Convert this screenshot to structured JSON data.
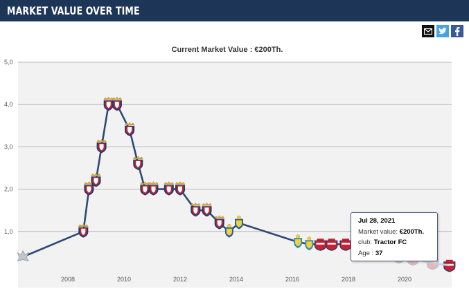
{
  "header": {
    "title": "MARKET VALUE OVER TIME"
  },
  "share": {
    "mail": "email-share",
    "twitter": "twitter-share",
    "facebook": "facebook-share"
  },
  "chart_data": {
    "type": "line",
    "title": "Current Market Value : €200Th.",
    "xlabel": "",
    "ylabel": "",
    "x_ticks": [
      "2008",
      "2010",
      "2012",
      "2014",
      "2016",
      "2018",
      "2020"
    ],
    "y_ticks": [
      "1,0",
      "2,0",
      "3,0",
      "4,0",
      "5,0"
    ],
    "ylim": [
      0,
      5
    ],
    "xlim": [
      2006.3,
      2021.9
    ],
    "grid": true,
    "x": [
      2006.4,
      2008.55,
      2008.75,
      2009.0,
      2009.2,
      2009.45,
      2009.75,
      2010.2,
      2010.5,
      2010.75,
      2011.05,
      2011.6,
      2012.0,
      2012.55,
      2012.95,
      2013.4,
      2013.75,
      2014.1,
      2016.2,
      2016.6,
      2017.0,
      2017.4,
      2017.9,
      2018.3,
      2018.8,
      2019.2,
      2019.8,
      2020.3,
      2021.0,
      2021.6
    ],
    "values": [
      0.4,
      1.0,
      2.0,
      2.2,
      3.0,
      4.0,
      4.0,
      3.4,
      2.6,
      2.0,
      2.0,
      2.0,
      2.0,
      1.5,
      1.5,
      1.2,
      1.0,
      1.2,
      0.75,
      0.7,
      0.7,
      0.7,
      0.7,
      0.7,
      0.6,
      0.5,
      0.4,
      0.35,
      0.25,
      0.2
    ],
    "club_icon": [
      "generic",
      "osasuna",
      "osasuna",
      "osasuna",
      "osasuna",
      "osasuna",
      "osasuna",
      "osasuna",
      "osasuna",
      "osasuna",
      "osasuna",
      "osasuna",
      "osasuna",
      "osasuna",
      "osasuna",
      "osasuna",
      "yellowblue",
      "yellowblue",
      "yellowgreen",
      "yellowgreen",
      "tractor",
      "tractor",
      "tractor",
      "tractor",
      "tractor-faded",
      "tractor-faded",
      "tractor-faded",
      "tractor-faded",
      "tractor-faded",
      "tractor"
    ],
    "line_color": "#2e4a73",
    "colors": {
      "osasuna_red": "#c8202f",
      "osasuna_blue": "#1f3b70",
      "gold": "#d8b046",
      "tractor_red": "#c8202f",
      "yellowblue": "#2a5ea8"
    },
    "tooltip": {
      "date": "Jul 28, 2021",
      "market_value_label": "Market value: ",
      "market_value": "€200Th.",
      "club_label": "club: ",
      "club": "Tractor FC",
      "age_label": "Age : ",
      "age": "37"
    }
  }
}
